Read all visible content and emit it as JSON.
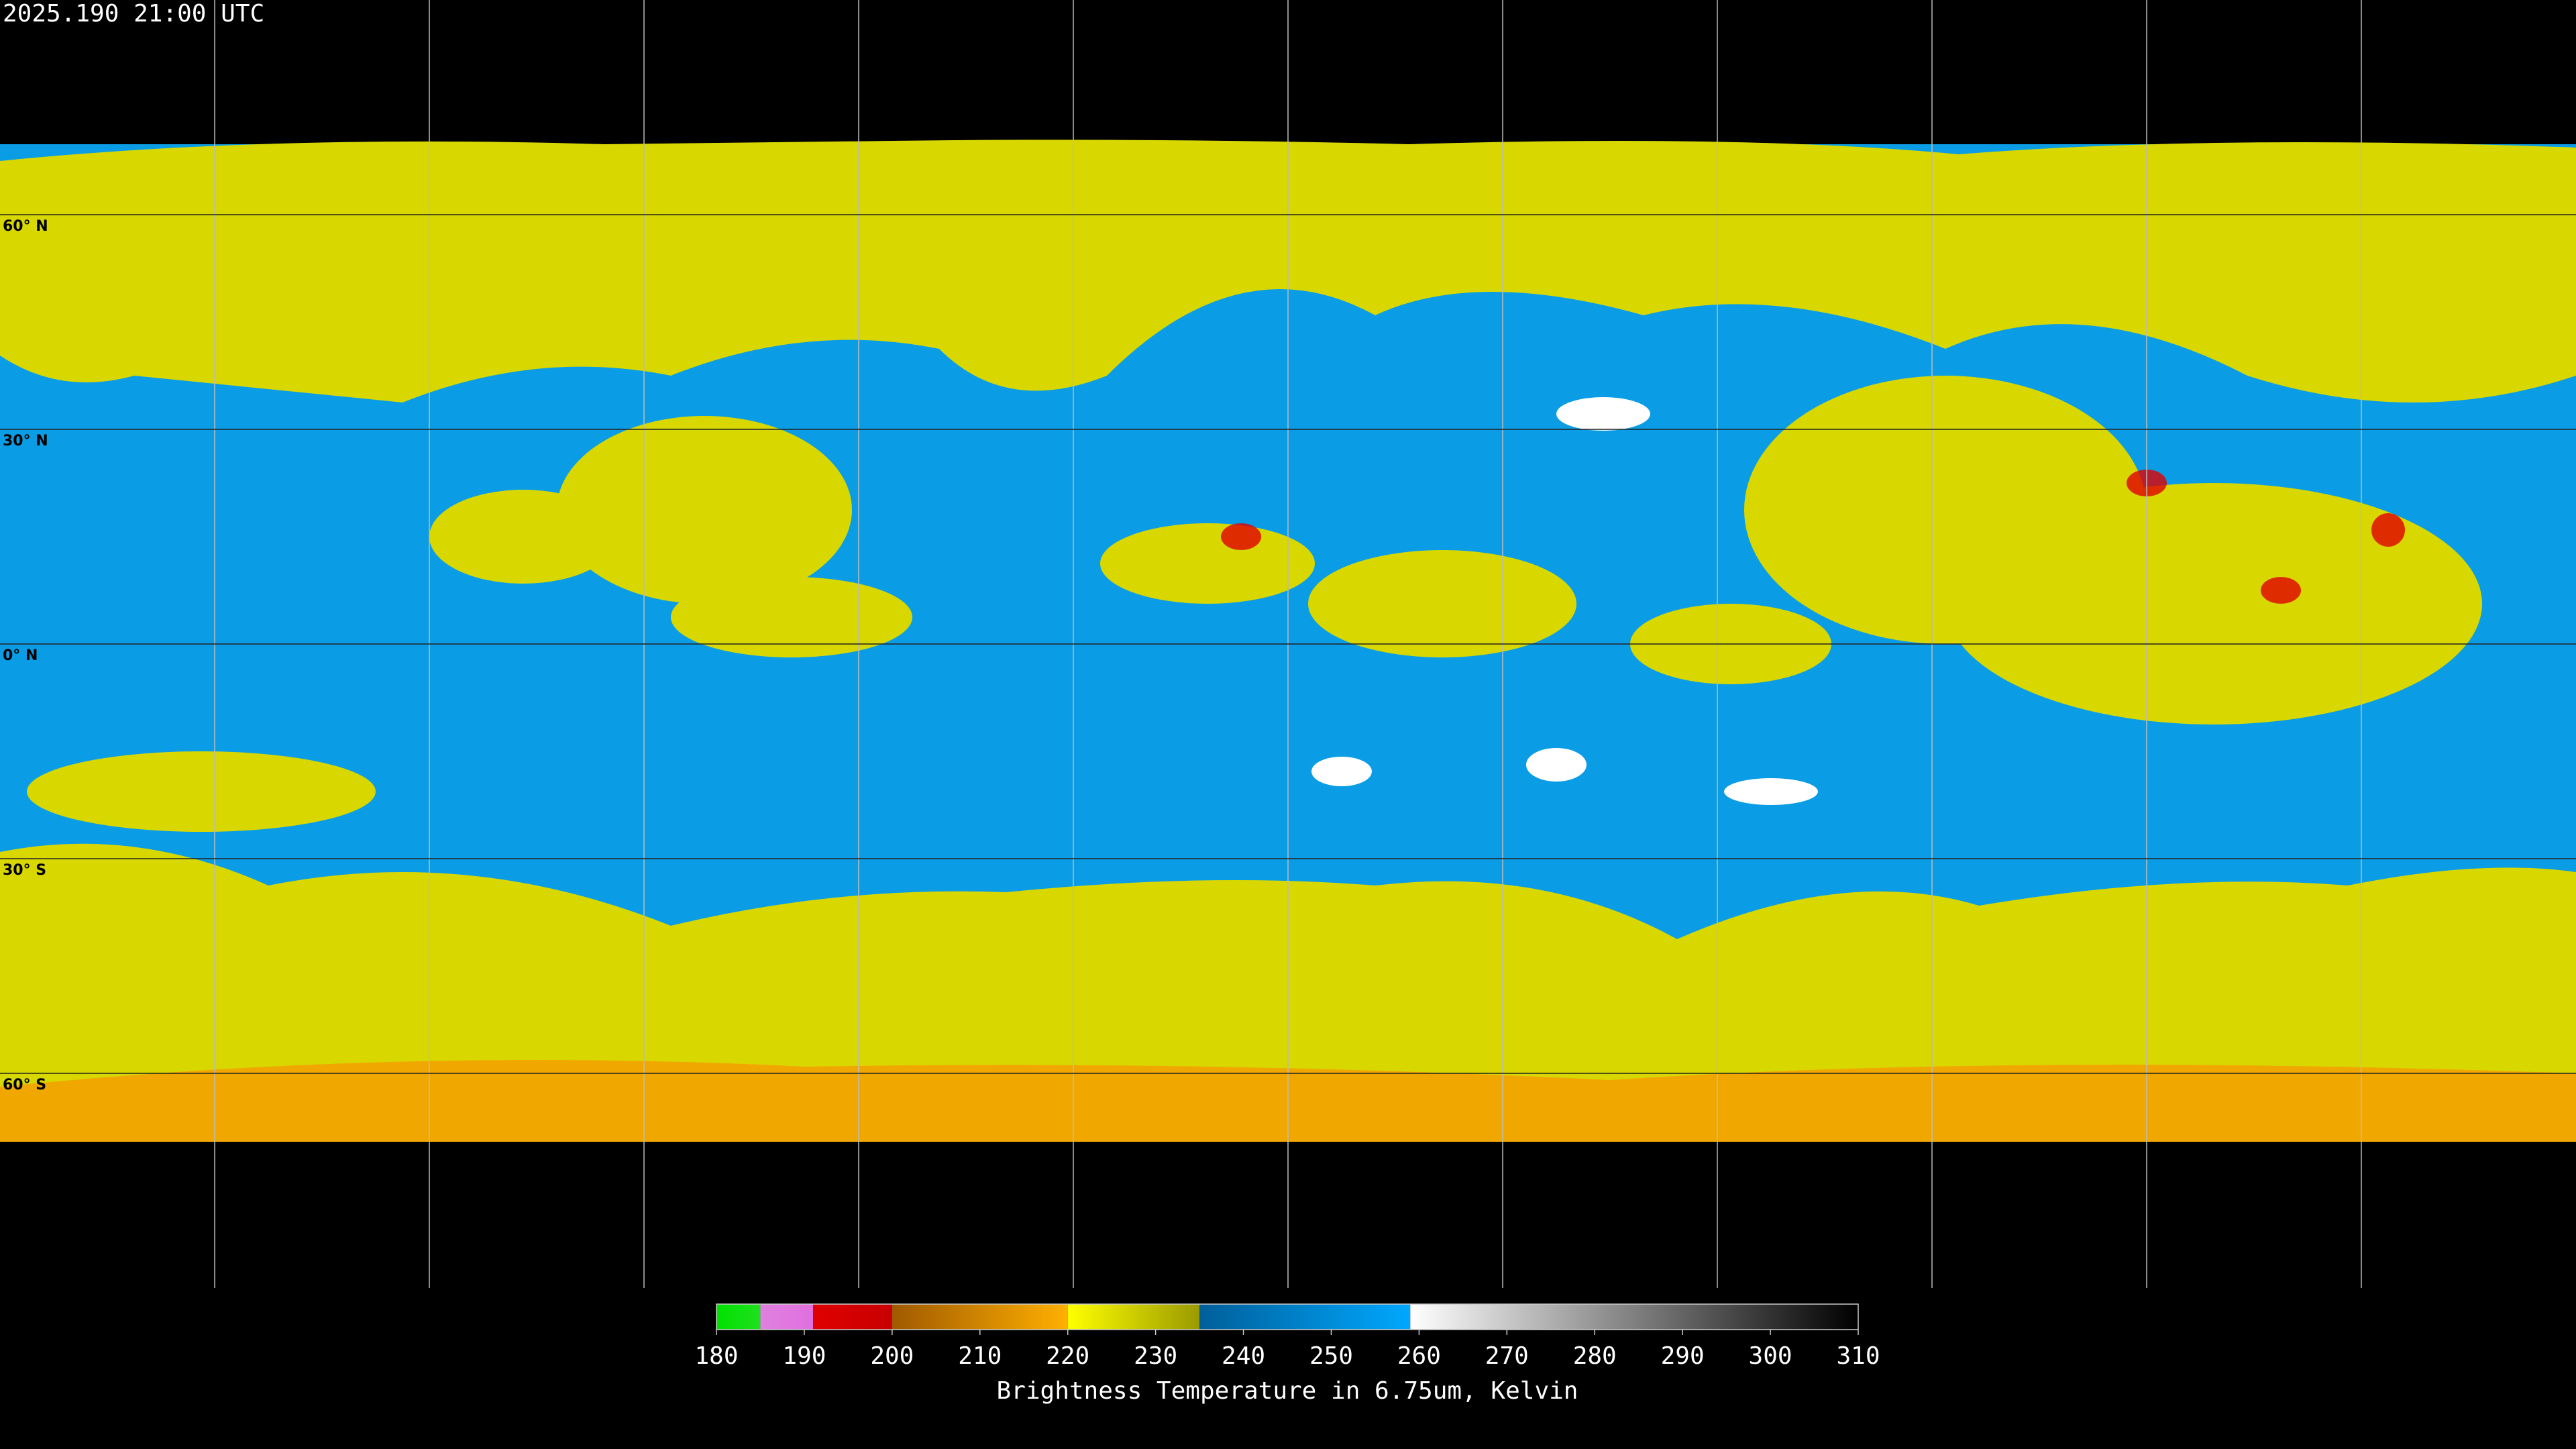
{
  "map": {
    "timestamp": "2025.190 21:00 UTC",
    "lat_ticks": [
      {
        "value": 60,
        "label": "60° N"
      },
      {
        "value": 30,
        "label": "30° N"
      },
      {
        "value": 0,
        "label": "0° N"
      },
      {
        "value": -30,
        "label": "30° S"
      },
      {
        "value": -60,
        "label": "60° S"
      }
    ],
    "lon_grid": [
      -150,
      -120,
      -90,
      -60,
      -30,
      0,
      30,
      60,
      90,
      120,
      150
    ],
    "colorbar": {
      "title": "Brightness Temperature in 6.75um, Kelvin",
      "lim": [
        180,
        310
      ],
      "ticks": [
        180,
        190,
        200,
        210,
        220,
        230,
        240,
        250,
        260,
        270,
        280,
        290,
        300,
        310
      ],
      "segments": [
        {
          "from": 180,
          "to": 185,
          "c0": "#00e000",
          "c1": "#20e020"
        },
        {
          "from": 185,
          "to": 191,
          "c0": "#e080e0",
          "c1": "#e070e0"
        },
        {
          "from": 191,
          "to": 200,
          "c0": "#e00000",
          "c1": "#c80000"
        },
        {
          "from": 200,
          "to": 220,
          "c0": "#a05a00",
          "c1": "#ffb000"
        },
        {
          "from": 220,
          "to": 235,
          "c0": "#ffff00",
          "c1": "#9a9a00"
        },
        {
          "from": 235,
          "to": 259,
          "c0": "#005f9a",
          "c1": "#00a8ff"
        },
        {
          "from": 259,
          "to": 310,
          "c0": "#ffffff",
          "c1": "#000000"
        }
      ]
    }
  }
}
